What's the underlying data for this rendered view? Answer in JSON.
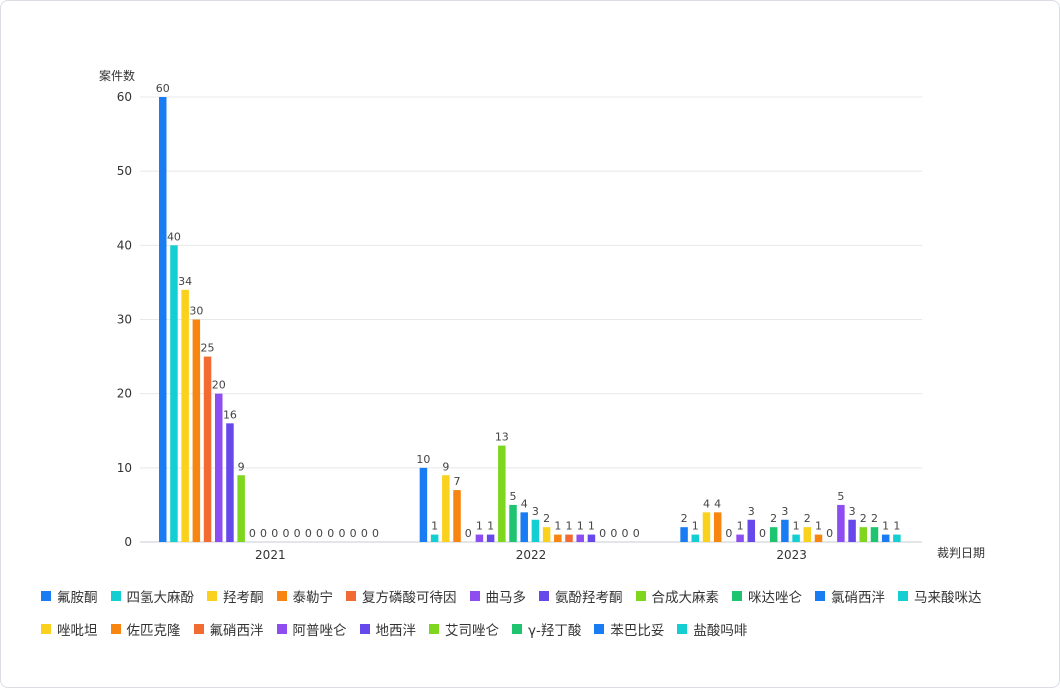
{
  "chart_data": {
    "type": "bar",
    "ylabel": "案件数",
    "xlabel": "裁判日期",
    "ylim": [
      0,
      60
    ],
    "yticks": [
      0,
      10,
      20,
      30,
      40,
      50,
      60
    ],
    "grid": true,
    "legend_position": "bottom",
    "groups": [
      {
        "category": "2021",
        "bars": [
          {
            "name": "氟胺酮",
            "value": 60
          },
          {
            "name": "四氢大麻酚",
            "value": 40
          },
          {
            "name": "羟考酮",
            "value": 34
          },
          {
            "name": "泰勒宁",
            "value": 30
          },
          {
            "name": "复方磷酸可待因",
            "value": 25
          },
          {
            "name": "曲马多",
            "value": 20
          },
          {
            "name": "氨酚羟考酮",
            "value": 16
          },
          {
            "name": "合成大麻素",
            "value": 9
          },
          {
            "name": "咪达唑仑",
            "value": 0
          },
          {
            "name": "氯硝西泮",
            "value": 0
          },
          {
            "name": "马来酸咪达",
            "value": 0
          },
          {
            "name": "唑吡坦",
            "value": 0
          },
          {
            "name": "佐匹克隆",
            "value": 0
          },
          {
            "name": "氟硝西泮",
            "value": 0
          },
          {
            "name": "阿普唑仑",
            "value": 0
          },
          {
            "name": "地西泮",
            "value": 0
          },
          {
            "name": "艾司唑仑",
            "value": 0
          },
          {
            "name": "γ-羟丁酸",
            "value": 0
          },
          {
            "name": "苯巴比妥",
            "value": 0
          },
          {
            "name": "盐酸吗啡",
            "value": 0
          }
        ]
      },
      {
        "category": "2022",
        "bars": [
          {
            "name": "氯硝西泮",
            "value": 10
          },
          {
            "name": "马来酸咪达",
            "value": 1
          },
          {
            "name": "唑吡坦",
            "value": 9
          },
          {
            "name": "佐匹克隆",
            "value": 7
          },
          {
            "name": "氟硝西泮",
            "value": 0
          },
          {
            "name": "阿普唑仑",
            "value": 1
          },
          {
            "name": "地西泮",
            "value": 1
          },
          {
            "name": "艾司唑仑",
            "value": 13
          },
          {
            "name": "γ-羟丁酸",
            "value": 5
          },
          {
            "name": "苯巴比妥",
            "value": 4
          },
          {
            "name": "盐酸吗啡",
            "value": 3
          },
          {
            "name": "羟考酮",
            "value": 2
          },
          {
            "name": "泰勒宁",
            "value": 1
          },
          {
            "name": "复方磷酸可待因",
            "value": 1
          },
          {
            "name": "曲马多",
            "value": 1
          },
          {
            "name": "氨酚羟考酮",
            "value": 1
          },
          {
            "name": "氟胺酮",
            "value": 0
          },
          {
            "name": "四氢大麻酚",
            "value": 0
          },
          {
            "name": "合成大麻素",
            "value": 0
          },
          {
            "name": "咪达唑仑",
            "value": 0
          }
        ]
      },
      {
        "category": "2023",
        "bars": [
          {
            "name": "氟胺酮",
            "value": 2
          },
          {
            "name": "四氢大麻酚",
            "value": 1
          },
          {
            "name": "羟考酮",
            "value": 4
          },
          {
            "name": "泰勒宁",
            "value": 4
          },
          {
            "name": "复方磷酸可待因",
            "value": 0
          },
          {
            "name": "曲马多",
            "value": 1
          },
          {
            "name": "氨酚羟考酮",
            "value": 3
          },
          {
            "name": "合成大麻素",
            "value": 0
          },
          {
            "name": "咪达唑仑",
            "value": 2
          },
          {
            "name": "氯硝西泮",
            "value": 3
          },
          {
            "name": "马来酸咪达",
            "value": 1
          },
          {
            "name": "唑吡坦",
            "value": 2
          },
          {
            "name": "佐匹克隆",
            "value": 1
          },
          {
            "name": "氟硝西泮",
            "value": 0
          },
          {
            "name": "阿普唑仑",
            "value": 5
          },
          {
            "name": "地西泮",
            "value": 3
          },
          {
            "name": "艾司唑仑",
            "value": 2
          },
          {
            "name": "γ-羟丁酸",
            "value": 2
          },
          {
            "name": "苯巴比妥",
            "value": 1
          },
          {
            "name": "盐酸吗啡",
            "value": 1
          }
        ]
      }
    ],
    "series": [
      {
        "name": "氟胺酮",
        "color": "#1a7cf2"
      },
      {
        "name": "四氢大麻酚",
        "color": "#13cfd1"
      },
      {
        "name": "羟考酮",
        "color": "#fad11d"
      },
      {
        "name": "泰勒宁",
        "color": "#f7850f"
      },
      {
        "name": "复方磷酸可待因",
        "color": "#f26b33"
      },
      {
        "name": "曲马多",
        "color": "#8d4df0"
      },
      {
        "name": "氨酚羟考酮",
        "color": "#6748eb"
      },
      {
        "name": "合成大麻素",
        "color": "#7ed61e"
      },
      {
        "name": "咪达唑仑",
        "color": "#1fc471"
      },
      {
        "name": "氯硝西泮",
        "color": "#1a7cf2"
      },
      {
        "name": "马来酸咪达",
        "color": "#13cfd1"
      },
      {
        "name": "唑吡坦",
        "color": "#fad11d"
      },
      {
        "name": "佐匹克隆",
        "color": "#f7850f"
      },
      {
        "name": "氟硝西泮",
        "color": "#f26b33"
      },
      {
        "name": "阿普唑仑",
        "color": "#8d4df0"
      },
      {
        "name": "地西泮",
        "color": "#6748eb"
      },
      {
        "name": "艾司唑仑",
        "color": "#7ed61e"
      },
      {
        "name": "γ-羟丁酸",
        "color": "#1fc471"
      },
      {
        "name": "苯巴比妥",
        "color": "#1a7cf2"
      },
      {
        "name": "盐酸吗啡",
        "color": "#13cfd1"
      }
    ]
  }
}
